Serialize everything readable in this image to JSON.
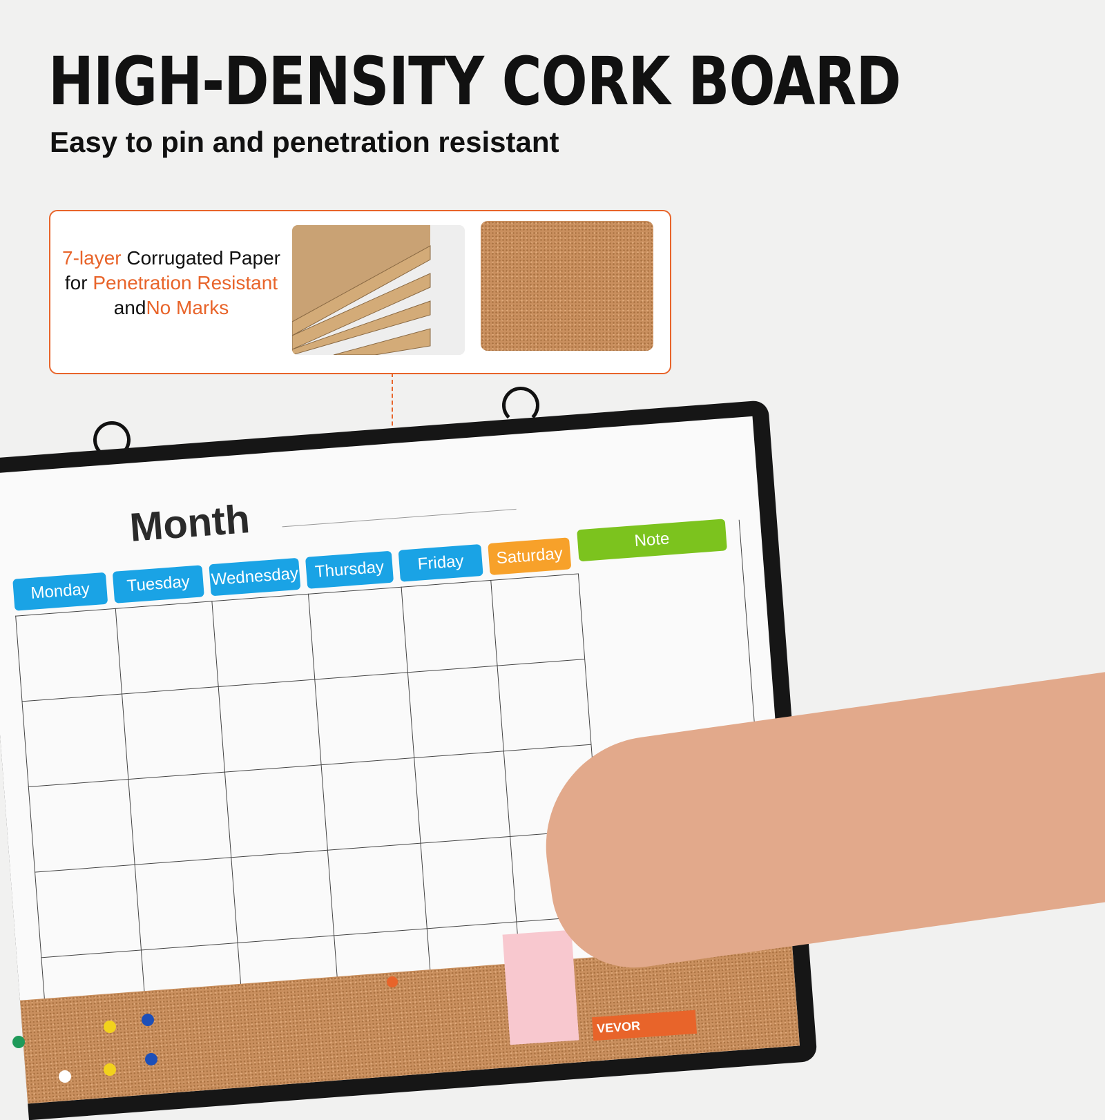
{
  "header": {
    "title": "HIGH-DENSITY CORK BOARD",
    "subtitle": "Easy to pin and penetration resistant"
  },
  "callout": {
    "part1": "7-layer",
    "part2": " Corrugated Paper for ",
    "part3": "Penetration Resistant",
    "part4": " and",
    "part5": "No Marks"
  },
  "board": {
    "month_label": "Month",
    "days": [
      "Monday",
      "Tuesday",
      "Wednesday",
      "Thursday",
      "Friday",
      "Saturday"
    ],
    "note_label": "Note",
    "brand": "VEVOR"
  },
  "colors": {
    "accent": "#e8642a",
    "day_tab": "#1aa3e5",
    "saturday_tab": "#f7a12a",
    "note_tab": "#7cc31e"
  }
}
